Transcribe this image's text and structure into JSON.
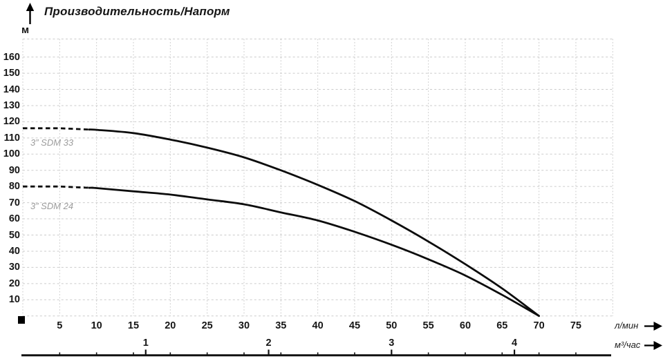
{
  "title": "Производительность/Напорм",
  "y_axis": {
    "unit": "м",
    "ticks": [
      160,
      150,
      140,
      130,
      120,
      110,
      100,
      90,
      80,
      70,
      60,
      50,
      40,
      30,
      20,
      10
    ]
  },
  "x_axis": {
    "unit": "л/мин",
    "ticks": [
      5,
      10,
      15,
      20,
      25,
      30,
      35,
      40,
      45,
      50,
      55,
      60,
      65,
      70,
      75
    ]
  },
  "x_axis_secondary": {
    "unit": "м³/час",
    "ticks": [
      1,
      2,
      3,
      4
    ],
    "tick_positions_in_lmin": [
      16.667,
      33.333,
      50,
      66.667
    ]
  },
  "series_labels": {
    "sdm33": "3” SDM 33",
    "sdm24": "3” SDM 24"
  },
  "colors": {
    "curve": "#0c0c0c",
    "grid": "#cbcbcb",
    "series_label": "#9c9c9c",
    "text": "#161616",
    "axis_line": "#111111"
  },
  "chart_data": {
    "type": "line",
    "title": "Производительность/Напорм",
    "y_unit": "м",
    "x_unit_primary": "л/мин",
    "x_unit_secondary": "м³/час",
    "xlim": [
      0,
      80
    ],
    "ylim": [
      0,
      170
    ],
    "grid": true,
    "x": [
      0,
      5,
      10,
      15,
      20,
      25,
      30,
      35,
      40,
      45,
      50,
      55,
      60,
      65,
      70
    ],
    "series": [
      {
        "name": "3” SDM 33",
        "dashed_until_x": 9,
        "values": [
          116,
          116,
          115,
          113,
          109,
          104,
          98,
          90,
          81,
          71,
          59,
          46,
          32,
          17,
          0
        ]
      },
      {
        "name": "3” SDM 24",
        "dashed_until_x": 9,
        "values": [
          80,
          80,
          79,
          77,
          75,
          72,
          69,
          64,
          59,
          52,
          44,
          35,
          25,
          13,
          0
        ]
      }
    ]
  }
}
